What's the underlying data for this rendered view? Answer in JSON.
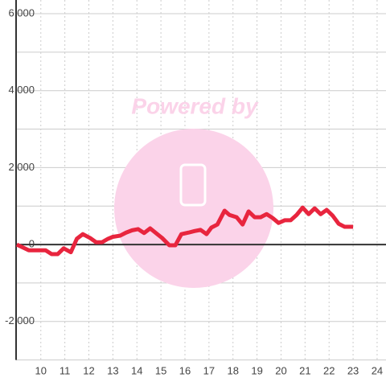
{
  "chart_data": {
    "type": "line",
    "watermark": "Powered by",
    "x": [
      9.0,
      9.5,
      10.0,
      10.2,
      10.45,
      10.7,
      10.95,
      11.25,
      11.5,
      11.75,
      12.05,
      12.3,
      12.55,
      12.8,
      13.0,
      13.3,
      13.55,
      13.8,
      14.05,
      14.3,
      14.55,
      14.85,
      15.05,
      15.35,
      15.6,
      15.85,
      16.15,
      16.4,
      16.65,
      16.9,
      17.1,
      17.35,
      17.65,
      17.85,
      18.15,
      18.4,
      18.65,
      18.9,
      19.15,
      19.4,
      19.65,
      19.9,
      20.15,
      20.4,
      20.65,
      20.9,
      21.15,
      21.4,
      21.65,
      21.9,
      22.15,
      22.4,
      22.65,
      22.9,
      23.0
    ],
    "series": [
      {
        "color": "#e8253e",
        "values": [
          0,
          -150,
          -150,
          -150,
          -250,
          -250,
          -100,
          -200,
          150,
          270,
          170,
          60,
          60,
          150,
          200,
          230,
          310,
          370,
          400,
          300,
          420,
          270,
          170,
          -20,
          -20,
          270,
          310,
          350,
          380,
          270,
          440,
          520,
          880,
          770,
          710,
          520,
          860,
          710,
          710,
          790,
          690,
          560,
          630,
          630,
          770,
          960,
          790,
          940,
          790,
          900,
          750,
          540,
          460,
          460,
          460
        ]
      }
    ],
    "xlim": [
      8.97,
      24.37
    ],
    "xticks": [
      10,
      11,
      12,
      13,
      14,
      15,
      16,
      17,
      18,
      19,
      20,
      21,
      22,
      23,
      24
    ],
    "ylim": [
      -3000,
      6000
    ],
    "yticks": [
      {
        "value": -2000,
        "label": "-2,000"
      },
      0,
      {
        "value": 2000,
        "label": "2,000"
      },
      {
        "value": 4000,
        "label": "4,000"
      },
      {
        "value": 6000,
        "label": "6,000"
      }
    ],
    "yminor": [
      -3000,
      -1000,
      1000,
      3000,
      5000
    ],
    "grid": true
  }
}
